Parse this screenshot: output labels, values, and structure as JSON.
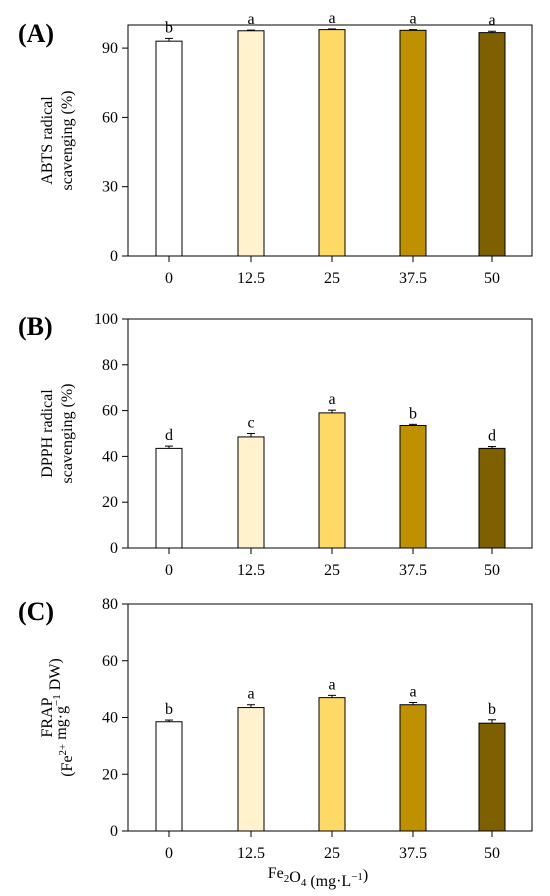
{
  "chart_data": [
    {
      "type": "bar",
      "panel_label": "(A)",
      "ylabel_lines": [
        "ABTS radical",
        "scavenging (%)"
      ],
      "ylim": [
        0,
        100
      ],
      "yticks": [
        0,
        30,
        60,
        90
      ],
      "categories": [
        "0",
        "12.5",
        "25",
        "37.5",
        "50"
      ],
      "values": [
        93,
        97.5,
        98,
        97.7,
        96.7
      ],
      "errors": [
        1.2,
        0.3,
        0.3,
        0.3,
        0.6
      ],
      "letters": [
        "b",
        "a",
        "a",
        "a",
        "a"
      ],
      "colors": [
        "#ffffff",
        "#fff2cc",
        "#ffd966",
        "#bf9000",
        "#7f6000"
      ],
      "xlabel": "",
      "grid": false
    },
    {
      "type": "bar",
      "panel_label": "(B)",
      "ylabel_lines": [
        "DPPH radical",
        "scavenging (%)"
      ],
      "ylim": [
        0,
        100
      ],
      "yticks": [
        0,
        20,
        40,
        60,
        80,
        100
      ],
      "categories": [
        "0",
        "12.5",
        "25",
        "37.5",
        "50"
      ],
      "values": [
        43.5,
        48.5,
        59,
        53.5,
        43.5
      ],
      "errors": [
        1.0,
        1.5,
        1.2,
        0.5,
        0.8
      ],
      "letters": [
        "d",
        "c",
        "a",
        "b",
        "d"
      ],
      "colors": [
        "#ffffff",
        "#fff2cc",
        "#ffd966",
        "#bf9000",
        "#7f6000"
      ],
      "xlabel": "",
      "grid": false
    },
    {
      "type": "bar",
      "panel_label": "(C)",
      "ylabel_lines": [
        "FRAP",
        "(Fe2+ mg·g−1 DW)"
      ],
      "ylim": [
        0,
        80
      ],
      "yticks": [
        0,
        20,
        40,
        60,
        80
      ],
      "categories": [
        "0",
        "12.5",
        "25",
        "37.5",
        "50"
      ],
      "values": [
        38.5,
        43.5,
        47,
        44.5,
        38
      ],
      "errors": [
        0.6,
        1.0,
        0.8,
        0.8,
        1.2
      ],
      "letters": [
        "b",
        "a",
        "a",
        "a",
        "b"
      ],
      "colors": [
        "#ffffff",
        "#fff2cc",
        "#ffd966",
        "#bf9000",
        "#7f6000"
      ],
      "xlabel": "Fe2O4 (mg·L−1)",
      "grid": false
    }
  ]
}
